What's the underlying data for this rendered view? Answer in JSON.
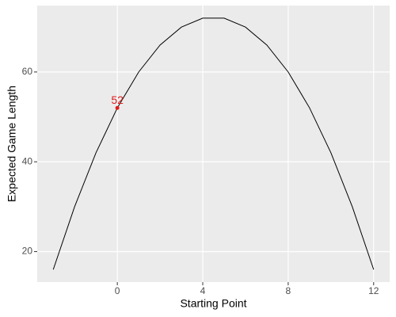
{
  "chart_data": {
    "type": "line",
    "x_label": "Starting Point",
    "y_label": "Expected Game Length",
    "x": [
      -3,
      -2,
      -1,
      0,
      1,
      2,
      3,
      4,
      5,
      6,
      7,
      8,
      9,
      10,
      11,
      12
    ],
    "series": [
      {
        "color": "#000000",
        "values": [
          16,
          30,
          42,
          52,
          60,
          66,
          70,
          72,
          72,
          70,
          66,
          60,
          52,
          42,
          30,
          16
        ]
      }
    ],
    "xlim": [
      -3.75,
      12.75
    ],
    "xticks": [
      0,
      4,
      8,
      12
    ],
    "ylim": [
      13.2,
      74.8
    ],
    "yticks": [
      20,
      40,
      60
    ],
    "grid": true,
    "highlight": {
      "x": 0,
      "y": 52,
      "label": "52",
      "color": "#e41a1c"
    }
  }
}
